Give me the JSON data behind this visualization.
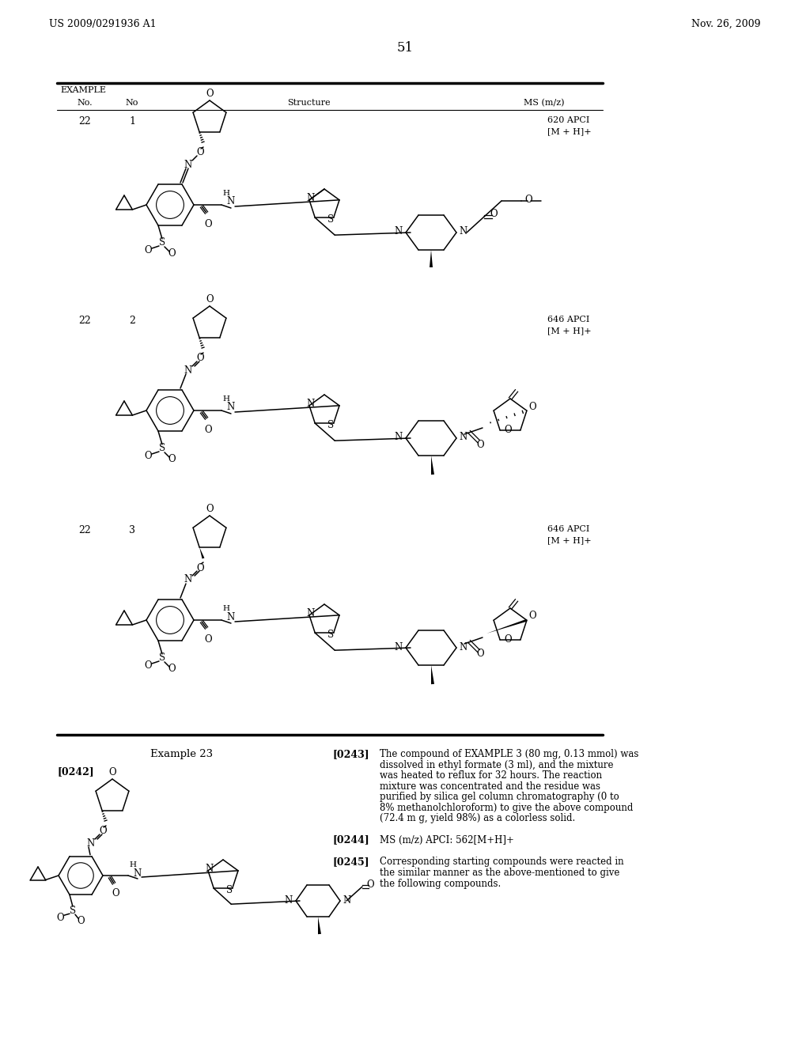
{
  "bg_color": "#ffffff",
  "header_left": "US 2009/0291936 A1",
  "header_right": "Nov. 26, 2009",
  "page_number": "51",
  "table_header_row1": "EXAMPLE",
  "table_col1": "No.",
  "table_col2": "No",
  "table_col3": "Structure",
  "table_col4": "MS (m/z)",
  "row1_ex": "22",
  "row1_no": "1",
  "row1_ms1": "620 APCI",
  "row1_ms2": "[M + H]+",
  "row2_ex": "22",
  "row2_no": "2",
  "row2_ms1": "646 APCI",
  "row2_ms2": "[M + H]+",
  "row3_ex": "22",
  "row3_no": "3",
  "row3_ms1": "646 APCI",
  "row3_ms2": "[M + H]+",
  "section_label": "[0242]",
  "example_title": "Example 23",
  "para_0243_label": "[0243]",
  "para_0243_text": "The compound of EXAMPLE 3 (80 mg, 0.13 mmol) was dissolved in ethyl formate (3 ml), and the mixture was heated to reflux for 32 hours. The reaction mixture was concentrated and the residue was purified by silica gel column chromatography (0 to 8% methanolchloroform) to give the above compound (72.4 m g, yield 98%) as a colorless solid.",
  "para_0244_label": "[0244]",
  "para_0244_text": "MS (m/z) APCI: 562[M+H]+",
  "para_0245_label": "[0245]",
  "para_0245_text": "Corresponding starting compounds were reacted in the similar manner as the above-mentioned to give the following compounds."
}
